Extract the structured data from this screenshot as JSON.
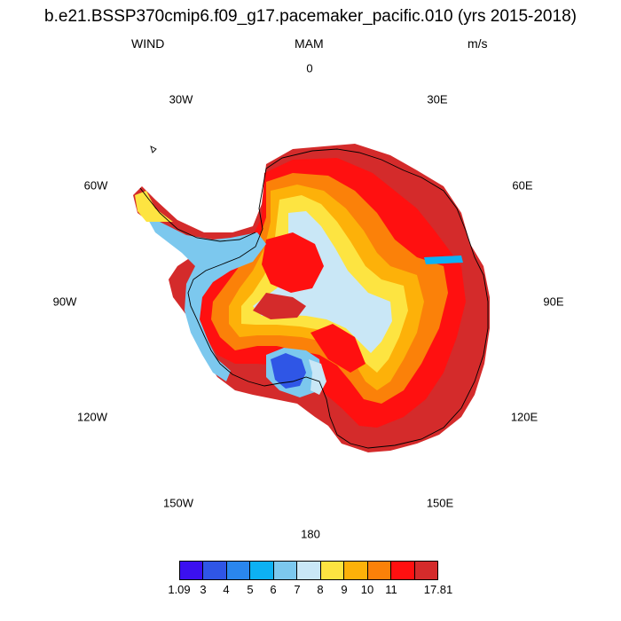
{
  "title": "b.e21.BSSP370cmip6.f09_g17.pacemaker_pacific.010 (yrs 2015-2018)",
  "variable": "WIND",
  "season": "MAM",
  "units": "m/s",
  "longitude_labels": {
    "lon_0": "0",
    "lon_30e": "30E",
    "lon_60e": "60E",
    "lon_90e": "90E",
    "lon_120e": "120E",
    "lon_150e": "150E",
    "lon_180": "180",
    "lon_150w": "150W",
    "lon_120w": "120W",
    "lon_90w": "90W",
    "lon_60w": "60W",
    "lon_30w": "30W"
  },
  "colorbar": {
    "colors": [
      "#3b10f0",
      "#2f56e6",
      "#2a86ee",
      "#0db1f3",
      "#7cc8ee",
      "#c9e7f6",
      "#fde441",
      "#fdb109",
      "#fb8109",
      "#ff1010",
      "#d42b2b"
    ],
    "labels": {
      "l0": "1.09",
      "l1": "3",
      "l2": "4",
      "l3": "5",
      "l4": "6",
      "l5": "7",
      "l6": "8",
      "l7": "9",
      "l8": "10",
      "l9": "11",
      "l10": "17.81"
    }
  }
}
